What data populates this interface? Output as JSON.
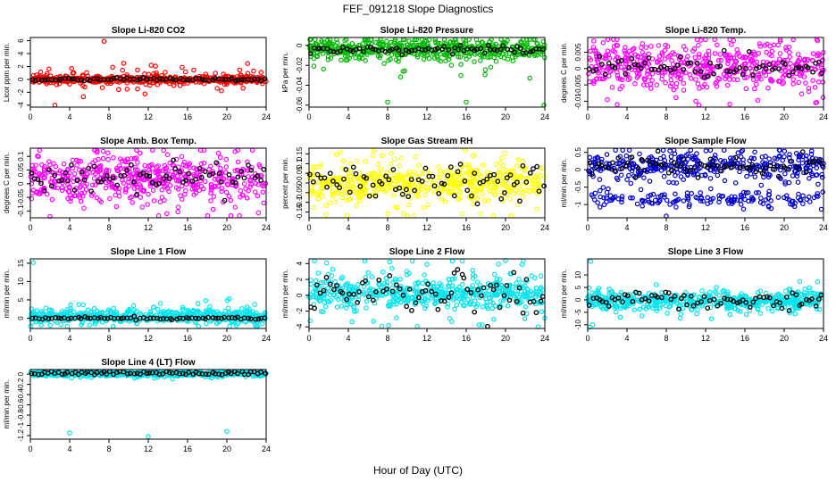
{
  "figure": {
    "title": "FEF_091218  Slope Diagnostics",
    "xlabel": "Hour of Day (UTC)"
  },
  "chart_data": [
    {
      "type": "scatter",
      "title": "Slope Li-820 CO2",
      "ylabel": "Licor ppm per min.",
      "xlim": [
        0,
        24
      ],
      "xticks": [
        0,
        4,
        8,
        12,
        16,
        20,
        24
      ],
      "yticks": [
        -4,
        -2,
        0,
        2,
        4,
        6
      ],
      "ylim": [
        -4.3,
        6.5
      ],
      "color": "#ff0000",
      "center": 0.0,
      "spread": 0.25,
      "wide_spread": 0.9,
      "hl_spread": 0.12,
      "hl_offset": 0,
      "outliers": [
        {
          "x": 7.5,
          "y": 5.9
        },
        {
          "x": 2.5,
          "y": -4.0
        },
        {
          "x": 9.5,
          "y": 2.5
        },
        {
          "x": 12.3,
          "y": 2.2
        },
        {
          "x": 5.4,
          "y": -2.7
        }
      ]
    },
    {
      "type": "scatter",
      "title": "Slope Li-820 Pressure",
      "ylabel": "kPa per min.",
      "xlim": [
        0,
        24
      ],
      "xticks": [
        0,
        4,
        8,
        12,
        16,
        20,
        24
      ],
      "yticks": [
        -0.06,
        -0.04,
        -0.02,
        0.0
      ],
      "ylim": [
        -0.062,
        0.008
      ],
      "color": "#00bb00",
      "center": -0.004,
      "spread": 0.005,
      "wide_spread": 0.012,
      "hl_spread": 0.002,
      "hl_offset": 0,
      "outliers": [
        {
          "x": 8.0,
          "y": -0.057
        },
        {
          "x": 16.0,
          "y": -0.057
        },
        {
          "x": 23.9,
          "y": -0.06
        },
        {
          "x": 6.8,
          "y": 0.003
        },
        {
          "x": 20.2,
          "y": 0.005
        }
      ]
    },
    {
      "type": "scatter",
      "title": "Slope Li-820 Temp.",
      "ylabel": "degrees C per min.",
      "xlim": [
        0,
        24
      ],
      "xticks": [
        0,
        4,
        8,
        12,
        16,
        20,
        24
      ],
      "yticks": [
        -0.01,
        -0.005,
        0.0,
        0.005
      ],
      "ylim": [
        -0.0118,
        0.0095
      ],
      "color": "#ff00ff",
      "center": 0.0008,
      "spread": 0.0032,
      "wide_spread": 0.006,
      "hl_spread": 0.0018,
      "hl_offset": 0,
      "outliers": [
        {
          "x": 23.4,
          "y": 0.0085
        },
        {
          "x": 3.0,
          "y": -0.011
        },
        {
          "x": 23.2,
          "y": -0.0105
        }
      ]
    },
    {
      "type": "scatter",
      "title": "Slope Amb. Box Temp.",
      "ylabel": "degrees C per min.",
      "xlim": [
        0,
        24
      ],
      "xticks": [
        0,
        4,
        8,
        12,
        16,
        20,
        24
      ],
      "yticks": [
        -0.1,
        -0.05,
        0.0,
        0.05,
        0.1
      ],
      "ylim": [
        -0.125,
        0.13
      ],
      "color": "#ff00ff",
      "center": 0.02,
      "spread": 0.04,
      "wide_spread": 0.075,
      "hl_spread": 0.03,
      "hl_offset": 0,
      "outliers": [
        {
          "x": 2.0,
          "y": -0.12
        },
        {
          "x": 6.8,
          "y": 0.12
        }
      ]
    },
    {
      "type": "scatter",
      "title": "Slope Gas Stream RH",
      "ylabel": "percent per min.",
      "xlim": [
        0,
        24
      ],
      "xticks": [
        0,
        4,
        8,
        12,
        16,
        20,
        24
      ],
      "yticks": [
        -0.15,
        -0.1,
        -0.05,
        0.0,
        0.05,
        0.1,
        0.15
      ],
      "ylim": [
        -0.18,
        0.18
      ],
      "color": "#ffff00",
      "center": 0.0,
      "spread": 0.045,
      "wide_spread": 0.1,
      "hl_spread": 0.05,
      "hl_offset": 0,
      "outliers": [
        {
          "x": 3.9,
          "y": -0.17
        },
        {
          "x": 3.2,
          "y": 0.16
        },
        {
          "x": 8.0,
          "y": -0.16
        }
      ]
    },
    {
      "type": "scatter",
      "title": "Slope Sample Flow",
      "ylabel": "ml/min per min.",
      "xlim": [
        0,
        24
      ],
      "xticks": [
        0,
        4,
        8,
        12,
        16,
        20,
        24
      ],
      "yticks": [
        -1.0,
        -0.5,
        0.0,
        0.5
      ],
      "ylim": [
        -1.38,
        0.62
      ],
      "color": "#0000cc",
      "center": 0.1,
      "spread": 0.2,
      "wide_spread": 0.35,
      "hl_spread": 0.15,
      "hl_offset": 0,
      "second_band": -0.85,
      "second_spread": 0.12,
      "outliers": [
        {
          "x": 8.0,
          "y": -1.33
        }
      ]
    },
    {
      "type": "scatter",
      "title": "Slope Line 1 Flow",
      "ylabel": "ml/min per min.",
      "xlim": [
        0,
        24
      ],
      "xticks": [
        0,
        4,
        8,
        12,
        16,
        20,
        24
      ],
      "yticks": [
        0,
        5,
        10,
        15
      ],
      "ylim": [
        -2.8,
        16.2
      ],
      "color": "#00e5ee",
      "center": 0.6,
      "spread": 0.9,
      "wide_spread": 1.8,
      "hl_spread": 0.15,
      "hl_offset": -0.6,
      "outliers": [
        {
          "x": 0.3,
          "y": 15.2
        },
        {
          "x": 23.0,
          "y": -2.2
        }
      ]
    },
    {
      "type": "scatter",
      "title": "Slope Line 2 Flow",
      "ylabel": "ml/min per min.",
      "xlim": [
        0,
        24
      ],
      "xticks": [
        0,
        4,
        8,
        12,
        16,
        20,
        24
      ],
      "yticks": [
        -4,
        -2,
        0,
        2,
        4
      ],
      "ylim": [
        -4.2,
        4.6
      ],
      "color": "#00e5ee",
      "center": 0.2,
      "spread": 0.9,
      "wide_spread": 2.0,
      "hl_spread": 1.3,
      "hl_offset": 0,
      "outliers": [
        {
          "x": 23.3,
          "y": -4.0
        },
        {
          "x": 20.0,
          "y": 4.4
        },
        {
          "x": 8.2,
          "y": 4.2
        },
        {
          "x": 12.0,
          "y": 3.9
        }
      ]
    },
    {
      "type": "scatter",
      "title": "Slope Line 3 Flow",
      "ylabel": "ml/min per min.",
      "xlim": [
        0,
        24
      ],
      "xticks": [
        0,
        4,
        8,
        12,
        16,
        20,
        24
      ],
      "yticks": [
        -10,
        -5,
        0,
        5,
        10
      ],
      "ylim": [
        -11.5,
        16.5
      ],
      "color": "#00e5ee",
      "center": -0.5,
      "spread": 1.8,
      "wide_spread": 3.5,
      "hl_spread": 1.6,
      "hl_offset": 0.3,
      "outliers": [
        {
          "x": 0.3,
          "y": 15.5
        },
        {
          "x": 0.2,
          "y": -11.0
        },
        {
          "x": 0.5,
          "y": -10.0
        }
      ]
    },
    {
      "type": "scatter",
      "title": "Slope Line 4 (LT) Flow",
      "ylabel": "ml/min per min.",
      "xlim": [
        0,
        24
      ],
      "xticks": [
        0,
        4,
        8,
        12,
        16,
        20,
        24
      ],
      "yticks": [
        -1.2,
        -1.0,
        -0.8,
        -0.6,
        -0.4,
        -0.2,
        0.0
      ],
      "ylim": [
        -1.27,
        0.09
      ],
      "color": "#00e5ee",
      "center": 0.01,
      "spread": 0.025,
      "wide_spread": 0.045,
      "hl_spread": 0.02,
      "hl_offset": 0.01,
      "outliers": [
        {
          "x": 4.0,
          "y": -1.15
        },
        {
          "x": 12.0,
          "y": -1.22
        },
        {
          "x": 20.0,
          "y": -1.12
        }
      ]
    }
  ]
}
